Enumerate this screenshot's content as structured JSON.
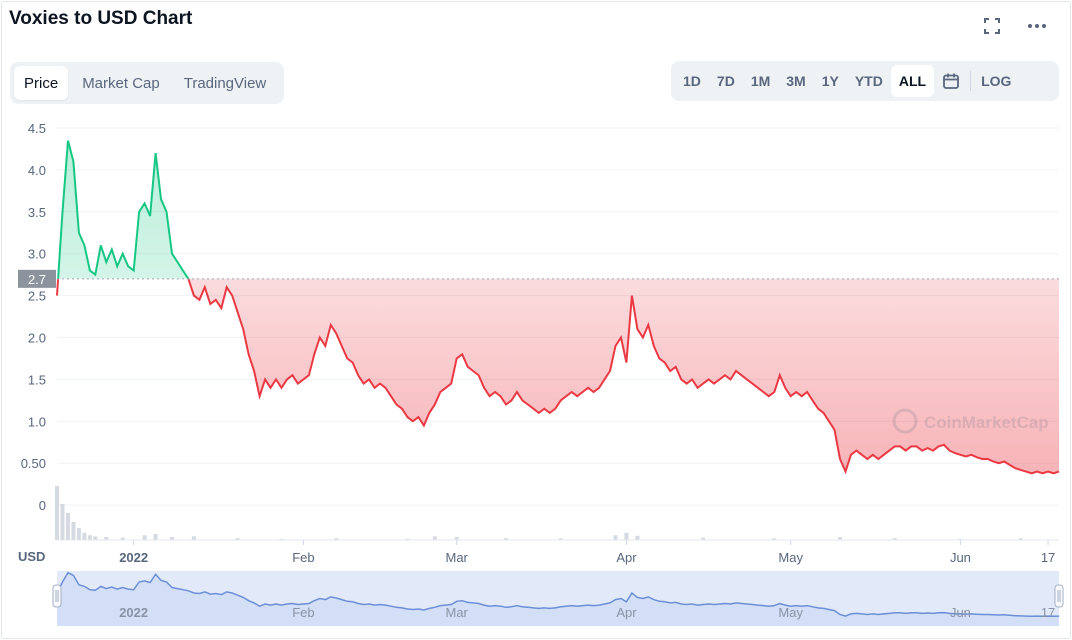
{
  "header": {
    "title": "Voxies to USD Chart",
    "fullscreen_icon": "fullscreen-icon",
    "more_icon": "more-icon"
  },
  "tabs": [
    {
      "label": "Price",
      "active": true
    },
    {
      "label": "Market Cap",
      "active": false
    },
    {
      "label": "TradingView",
      "active": false
    }
  ],
  "ranges": [
    {
      "label": "1D",
      "active": false
    },
    {
      "label": "7D",
      "active": false
    },
    {
      "label": "1M",
      "active": false
    },
    {
      "label": "3M",
      "active": false
    },
    {
      "label": "1Y",
      "active": false
    },
    {
      "label": "YTD",
      "active": false
    },
    {
      "label": "ALL",
      "active": true
    }
  ],
  "calendar_icon": "calendar-icon",
  "log_label": "LOG",
  "watermark": "CoinMarketCap",
  "colors": {
    "up": "#16c784",
    "down": "#ea3943",
    "volume": "#c7cdd8",
    "nav_line": "#6b8fd6",
    "nav_fill": "#e2eafa",
    "baseline_tag": "#8c939d"
  },
  "chart_data": {
    "type": "line",
    "title": "",
    "ylabel": "",
    "xlabel": "",
    "currency_label": "USD",
    "ylim": [
      -0.5,
      4.5
    ],
    "y_ticks": [
      "4.5",
      "4.0",
      "3.5",
      "3.0",
      "2.5",
      "2.0",
      "1.5",
      "1.0",
      "0.50",
      "0"
    ],
    "baseline": 2.7,
    "baseline_label": "2.7",
    "x_ticks": [
      {
        "label": "2022",
        "date": "2022-01-01",
        "bold": true
      },
      {
        "label": "Feb",
        "date": "2022-02-01",
        "bold": false
      },
      {
        "label": "Mar",
        "date": "2022-03-01",
        "bold": false
      },
      {
        "label": "Apr",
        "date": "2022-04-01",
        "bold": false
      },
      {
        "label": "May",
        "date": "2022-05-01",
        "bold": false
      },
      {
        "label": "Jun",
        "date": "2022-06-01",
        "bold": false
      },
      {
        "label": "17",
        "date": "2022-06-17",
        "bold": false
      }
    ],
    "x_range": [
      "2021-12-18",
      "2022-06-19"
    ],
    "series": [
      {
        "points": [
          [
            "2021-12-18",
            2.5
          ],
          [
            "2021-12-19",
            3.5
          ],
          [
            "2021-12-20",
            4.35
          ],
          [
            "2021-12-21",
            4.1
          ],
          [
            "2021-12-22",
            3.25
          ],
          [
            "2021-12-23",
            3.1
          ],
          [
            "2021-12-24",
            2.8
          ],
          [
            "2021-12-25",
            2.75
          ],
          [
            "2021-12-26",
            3.1
          ],
          [
            "2021-12-27",
            2.9
          ],
          [
            "2021-12-28",
            3.05
          ],
          [
            "2021-12-29",
            2.85
          ],
          [
            "2021-12-30",
            3.0
          ],
          [
            "2021-12-31",
            2.85
          ],
          [
            "2022-01-01",
            2.8
          ],
          [
            "2022-01-02",
            3.5
          ],
          [
            "2022-01-03",
            3.6
          ],
          [
            "2022-01-04",
            3.45
          ],
          [
            "2022-01-05",
            4.2
          ],
          [
            "2022-01-06",
            3.65
          ],
          [
            "2022-01-07",
            3.5
          ],
          [
            "2022-01-08",
            3.0
          ],
          [
            "2022-01-09",
            2.9
          ],
          [
            "2022-01-10",
            2.8
          ],
          [
            "2022-01-11",
            2.7
          ],
          [
            "2022-01-12",
            2.5
          ],
          [
            "2022-01-13",
            2.45
          ],
          [
            "2022-01-14",
            2.6
          ],
          [
            "2022-01-15",
            2.4
          ],
          [
            "2022-01-16",
            2.45
          ],
          [
            "2022-01-17",
            2.35
          ],
          [
            "2022-01-18",
            2.6
          ],
          [
            "2022-01-19",
            2.5
          ],
          [
            "2022-01-20",
            2.3
          ],
          [
            "2022-01-21",
            2.1
          ],
          [
            "2022-01-22",
            1.8
          ],
          [
            "2022-01-23",
            1.6
          ],
          [
            "2022-01-24",
            1.3
          ],
          [
            "2022-01-25",
            1.5
          ],
          [
            "2022-01-26",
            1.4
          ],
          [
            "2022-01-27",
            1.5
          ],
          [
            "2022-01-28",
            1.4
          ],
          [
            "2022-01-29",
            1.5
          ],
          [
            "2022-01-30",
            1.55
          ],
          [
            "2022-01-31",
            1.45
          ],
          [
            "2022-02-01",
            1.5
          ],
          [
            "2022-02-02",
            1.55
          ],
          [
            "2022-02-03",
            1.8
          ],
          [
            "2022-02-04",
            2.0
          ],
          [
            "2022-02-05",
            1.9
          ],
          [
            "2022-02-06",
            2.15
          ],
          [
            "2022-02-07",
            2.05
          ],
          [
            "2022-02-08",
            1.9
          ],
          [
            "2022-02-09",
            1.75
          ],
          [
            "2022-02-10",
            1.7
          ],
          [
            "2022-02-11",
            1.55
          ],
          [
            "2022-02-12",
            1.45
          ],
          [
            "2022-02-13",
            1.5
          ],
          [
            "2022-02-14",
            1.4
          ],
          [
            "2022-02-15",
            1.45
          ],
          [
            "2022-02-16",
            1.4
          ],
          [
            "2022-02-17",
            1.3
          ],
          [
            "2022-02-18",
            1.2
          ],
          [
            "2022-02-19",
            1.15
          ],
          [
            "2022-02-20",
            1.05
          ],
          [
            "2022-02-21",
            1.0
          ],
          [
            "2022-02-22",
            1.05
          ],
          [
            "2022-02-23",
            0.95
          ],
          [
            "2022-02-24",
            1.1
          ],
          [
            "2022-02-25",
            1.2
          ],
          [
            "2022-02-26",
            1.35
          ],
          [
            "2022-02-27",
            1.4
          ],
          [
            "2022-02-28",
            1.45
          ],
          [
            "2022-03-01",
            1.75
          ],
          [
            "2022-03-02",
            1.8
          ],
          [
            "2022-03-03",
            1.65
          ],
          [
            "2022-03-04",
            1.6
          ],
          [
            "2022-03-05",
            1.55
          ],
          [
            "2022-03-06",
            1.4
          ],
          [
            "2022-03-07",
            1.3
          ],
          [
            "2022-03-08",
            1.35
          ],
          [
            "2022-03-09",
            1.3
          ],
          [
            "2022-03-10",
            1.2
          ],
          [
            "2022-03-11",
            1.25
          ],
          [
            "2022-03-12",
            1.35
          ],
          [
            "2022-03-13",
            1.25
          ],
          [
            "2022-03-14",
            1.2
          ],
          [
            "2022-03-15",
            1.15
          ],
          [
            "2022-03-16",
            1.1
          ],
          [
            "2022-03-17",
            1.15
          ],
          [
            "2022-03-18",
            1.1
          ],
          [
            "2022-03-19",
            1.15
          ],
          [
            "2022-03-20",
            1.25
          ],
          [
            "2022-03-21",
            1.3
          ],
          [
            "2022-03-22",
            1.35
          ],
          [
            "2022-03-23",
            1.3
          ],
          [
            "2022-03-24",
            1.35
          ],
          [
            "2022-03-25",
            1.4
          ],
          [
            "2022-03-26",
            1.35
          ],
          [
            "2022-03-27",
            1.4
          ],
          [
            "2022-03-28",
            1.5
          ],
          [
            "2022-03-29",
            1.6
          ],
          [
            "2022-03-30",
            1.9
          ],
          [
            "2022-03-31",
            2.0
          ],
          [
            "2022-04-01",
            1.7
          ],
          [
            "2022-04-02",
            2.5
          ],
          [
            "2022-04-03",
            2.1
          ],
          [
            "2022-04-04",
            2.0
          ],
          [
            "2022-04-05",
            2.15
          ],
          [
            "2022-04-06",
            1.9
          ],
          [
            "2022-04-07",
            1.75
          ],
          [
            "2022-04-08",
            1.7
          ],
          [
            "2022-04-09",
            1.6
          ],
          [
            "2022-04-10",
            1.65
          ],
          [
            "2022-04-11",
            1.5
          ],
          [
            "2022-04-12",
            1.45
          ],
          [
            "2022-04-13",
            1.5
          ],
          [
            "2022-04-14",
            1.4
          ],
          [
            "2022-04-15",
            1.45
          ],
          [
            "2022-04-16",
            1.5
          ],
          [
            "2022-04-17",
            1.45
          ],
          [
            "2022-04-18",
            1.5
          ],
          [
            "2022-04-19",
            1.55
          ],
          [
            "2022-04-20",
            1.5
          ],
          [
            "2022-04-21",
            1.6
          ],
          [
            "2022-04-22",
            1.55
          ],
          [
            "2022-04-23",
            1.5
          ],
          [
            "2022-04-24",
            1.45
          ],
          [
            "2022-04-25",
            1.4
          ],
          [
            "2022-04-26",
            1.35
          ],
          [
            "2022-04-27",
            1.3
          ],
          [
            "2022-04-28",
            1.35
          ],
          [
            "2022-04-29",
            1.55
          ],
          [
            "2022-04-30",
            1.4
          ],
          [
            "2022-05-01",
            1.3
          ],
          [
            "2022-05-02",
            1.35
          ],
          [
            "2022-05-03",
            1.3
          ],
          [
            "2022-05-04",
            1.35
          ],
          [
            "2022-05-05",
            1.25
          ],
          [
            "2022-05-06",
            1.15
          ],
          [
            "2022-05-07",
            1.1
          ],
          [
            "2022-05-08",
            1.0
          ],
          [
            "2022-05-09",
            0.9
          ],
          [
            "2022-05-10",
            0.55
          ],
          [
            "2022-05-11",
            0.4
          ],
          [
            "2022-05-12",
            0.6
          ],
          [
            "2022-05-13",
            0.65
          ],
          [
            "2022-05-14",
            0.6
          ],
          [
            "2022-05-15",
            0.55
          ],
          [
            "2022-05-16",
            0.6
          ],
          [
            "2022-05-17",
            0.55
          ],
          [
            "2022-05-18",
            0.6
          ],
          [
            "2022-05-19",
            0.65
          ],
          [
            "2022-05-20",
            0.7
          ],
          [
            "2022-05-21",
            0.7
          ],
          [
            "2022-05-22",
            0.65
          ],
          [
            "2022-05-23",
            0.7
          ],
          [
            "2022-05-24",
            0.7
          ],
          [
            "2022-05-25",
            0.65
          ],
          [
            "2022-05-26",
            0.68
          ],
          [
            "2022-05-27",
            0.65
          ],
          [
            "2022-05-28",
            0.7
          ],
          [
            "2022-05-29",
            0.72
          ],
          [
            "2022-05-30",
            0.65
          ],
          [
            "2022-05-31",
            0.62
          ],
          [
            "2022-06-01",
            0.6
          ],
          [
            "2022-06-02",
            0.58
          ],
          [
            "2022-06-03",
            0.6
          ],
          [
            "2022-06-04",
            0.57
          ],
          [
            "2022-06-05",
            0.55
          ],
          [
            "2022-06-06",
            0.55
          ],
          [
            "2022-06-07",
            0.52
          ],
          [
            "2022-06-08",
            0.5
          ],
          [
            "2022-06-09",
            0.52
          ],
          [
            "2022-06-10",
            0.48
          ],
          [
            "2022-06-11",
            0.44
          ],
          [
            "2022-06-12",
            0.42
          ],
          [
            "2022-06-13",
            0.4
          ],
          [
            "2022-06-14",
            0.38
          ],
          [
            "2022-06-15",
            0.4
          ],
          [
            "2022-06-16",
            0.38
          ],
          [
            "2022-06-17",
            0.4
          ],
          [
            "2022-06-18",
            0.38
          ],
          [
            "2022-06-19",
            0.4
          ]
        ]
      }
    ],
    "volume": [
      [
        "2021-12-18",
        0.9
      ],
      [
        "2021-12-19",
        0.6
      ],
      [
        "2021-12-20",
        0.45
      ],
      [
        "2021-12-21",
        0.3
      ],
      [
        "2021-12-22",
        0.2
      ],
      [
        "2021-12-23",
        0.12
      ],
      [
        "2021-12-24",
        0.08
      ],
      [
        "2021-12-25",
        0.06
      ],
      [
        "2021-12-27",
        0.05
      ],
      [
        "2021-12-30",
        0.04
      ],
      [
        "2022-01-03",
        0.08
      ],
      [
        "2022-01-05",
        0.1
      ],
      [
        "2022-01-08",
        0.05
      ],
      [
        "2022-01-12",
        0.06
      ],
      [
        "2022-01-20",
        0.03
      ],
      [
        "2022-01-28",
        0.02
      ],
      [
        "2022-02-07",
        0.03
      ],
      [
        "2022-02-20",
        0.02
      ],
      [
        "2022-02-25",
        0.06
      ],
      [
        "2022-03-01",
        0.05
      ],
      [
        "2022-03-10",
        0.03
      ],
      [
        "2022-03-20",
        0.03
      ],
      [
        "2022-03-30",
        0.08
      ],
      [
        "2022-04-01",
        0.12
      ],
      [
        "2022-04-03",
        0.07
      ],
      [
        "2022-04-15",
        0.04
      ],
      [
        "2022-04-28",
        0.03
      ],
      [
        "2022-05-10",
        0.05
      ],
      [
        "2022-05-20",
        0.03
      ],
      [
        "2022-06-01",
        0.02
      ],
      [
        "2022-06-12",
        0.03
      ]
    ]
  }
}
